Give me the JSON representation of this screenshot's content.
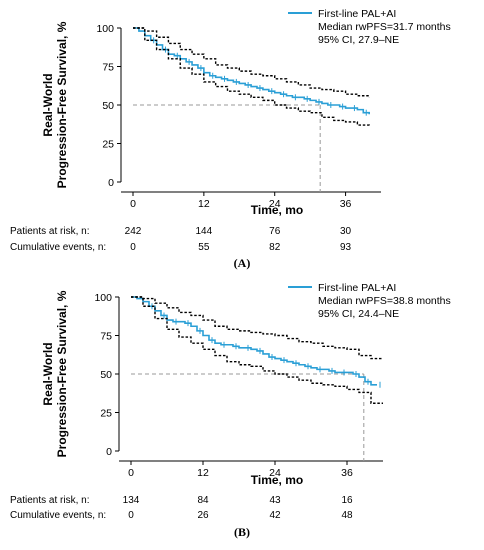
{
  "chart_data": [
    {
      "type": "line",
      "panel_label": "(A)",
      "xlabel": "Time, mo",
      "ylabel_line1": "Real-World",
      "ylabel_line2": "Progression-Free Survival, %",
      "xlim": [
        0,
        42
      ],
      "ylim": [
        0,
        100
      ],
      "xticks": [
        0,
        12,
        24,
        36
      ],
      "yticks": [
        0,
        25,
        50,
        75,
        100
      ],
      "grid": false,
      "legend": {
        "position": "top-right",
        "entry": "First-line PAL+AI",
        "median": "Median rwPFS=31.7 months",
        "ci": "95% CI, 27.9–NE"
      },
      "median_x": 31.7,
      "median_y": 50,
      "series": [
        {
          "name": "First-line PAL+AI",
          "color": "#2a9fd6",
          "x": [
            0,
            1,
            2,
            3,
            4,
            5,
            6,
            7,
            8,
            9,
            10,
            11,
            12,
            13,
            14,
            15,
            16,
            17,
            18,
            19,
            20,
            21,
            22,
            23,
            24,
            25,
            26,
            27,
            28,
            29,
            30,
            31,
            32,
            33,
            34,
            35,
            36,
            37,
            38,
            39,
            40
          ],
          "y": [
            100,
            98,
            95,
            92,
            89,
            86,
            83,
            82,
            80,
            78,
            76,
            74,
            71,
            69,
            68,
            67,
            66,
            65,
            64,
            63,
            62,
            61,
            60,
            59,
            58,
            57,
            56,
            55,
            55,
            54,
            53,
            52,
            51,
            50,
            50,
            49,
            48,
            48,
            47,
            45,
            44
          ]
        },
        {
          "name": "",
          "color": "#000000",
          "dashed": true,
          "x": [
            0,
            2,
            4,
            6,
            8,
            10,
            12,
            14,
            16,
            18,
            20,
            22,
            24,
            26,
            28,
            30,
            32,
            34,
            36,
            38,
            40
          ],
          "y": [
            100,
            98,
            94,
            90,
            86,
            83,
            80,
            76,
            74,
            72,
            70,
            69,
            67,
            65,
            63,
            61,
            60,
            59,
            57,
            56,
            55
          ]
        },
        {
          "name": "",
          "color": "#000000",
          "dashed": true,
          "x": [
            0,
            2,
            4,
            6,
            8,
            10,
            12,
            14,
            16,
            18,
            20,
            22,
            24,
            26,
            28,
            30,
            32,
            34,
            36,
            38,
            40
          ],
          "y": [
            100,
            92,
            86,
            80,
            74,
            70,
            65,
            62,
            59,
            57,
            55,
            53,
            50,
            48,
            46,
            45,
            42,
            40,
            39,
            37,
            36
          ]
        }
      ],
      "risk_table": {
        "times": [
          0,
          12,
          24,
          36
        ],
        "rows": [
          {
            "label": "Patients at risk, n:",
            "values": [
              "242",
              "144",
              "76",
              "30"
            ]
          },
          {
            "label": "Cumulative events, n:",
            "values": [
              "0",
              "55",
              "82",
              "93"
            ]
          }
        ]
      }
    },
    {
      "type": "line",
      "panel_label": "(B)",
      "xlabel": "Time, mo",
      "ylabel_line1": "Real-World",
      "ylabel_line2": "Progression-Free Survival, %",
      "xlim": [
        0,
        42
      ],
      "ylim": [
        0,
        100
      ],
      "xticks": [
        0,
        12,
        24,
        36
      ],
      "yticks": [
        0,
        25,
        50,
        75,
        100
      ],
      "grid": false,
      "legend": {
        "position": "top-right",
        "entry": "First-line PAL+AI",
        "median": "Median rwPFS=38.8 months",
        "ci": "95% CI, 24.4–NE"
      },
      "median_x": 38.8,
      "median_y": 50,
      "series": [
        {
          "name": "First-line PAL+AI",
          "color": "#2a9fd6",
          "x": [
            0,
            1,
            2,
            3,
            4,
            5,
            6,
            7,
            8,
            9,
            10,
            11,
            12,
            13,
            14,
            15,
            16,
            17,
            18,
            19,
            20,
            21,
            22,
            23,
            24,
            25,
            26,
            27,
            28,
            29,
            30,
            31,
            32,
            33,
            34,
            35,
            36,
            37,
            38,
            39,
            40,
            41
          ],
          "y": [
            100,
            99,
            97,
            94,
            91,
            88,
            85,
            84,
            84,
            83,
            81,
            78,
            75,
            72,
            70,
            69,
            69,
            68,
            67,
            67,
            66,
            65,
            63,
            61,
            60,
            59,
            58,
            57,
            56,
            55,
            54,
            53,
            53,
            52,
            51,
            51,
            51,
            50,
            48,
            45,
            43,
            43
          ]
        },
        {
          "name": "",
          "color": "#000000",
          "dashed": true,
          "x": [
            0,
            2,
            4,
            6,
            8,
            10,
            12,
            14,
            16,
            18,
            20,
            22,
            24,
            26,
            28,
            30,
            32,
            34,
            36,
            38,
            40,
            42
          ],
          "y": [
            100,
            99,
            96,
            93,
            90,
            88,
            85,
            81,
            79,
            78,
            77,
            76,
            75,
            73,
            71,
            70,
            68,
            67,
            66,
            62,
            60,
            60
          ]
        },
        {
          "name": "",
          "color": "#000000",
          "dashed": true,
          "x": [
            0,
            2,
            4,
            6,
            8,
            10,
            12,
            14,
            16,
            18,
            20,
            22,
            24,
            26,
            28,
            30,
            32,
            34,
            36,
            38,
            40,
            42
          ],
          "y": [
            100,
            94,
            86,
            79,
            74,
            70,
            66,
            62,
            58,
            56,
            55,
            52,
            50,
            48,
            46,
            44,
            43,
            42,
            40,
            38,
            31,
            31
          ]
        }
      ],
      "risk_table": {
        "times": [
          0,
          12,
          24,
          36
        ],
        "rows": [
          {
            "label": "Patients at risk, n:",
            "values": [
              "134",
              "84",
              "43",
              "16"
            ]
          },
          {
            "label": "Cumulative events, n:",
            "values": [
              "0",
              "26",
              "42",
              "48"
            ]
          }
        ]
      }
    }
  ]
}
